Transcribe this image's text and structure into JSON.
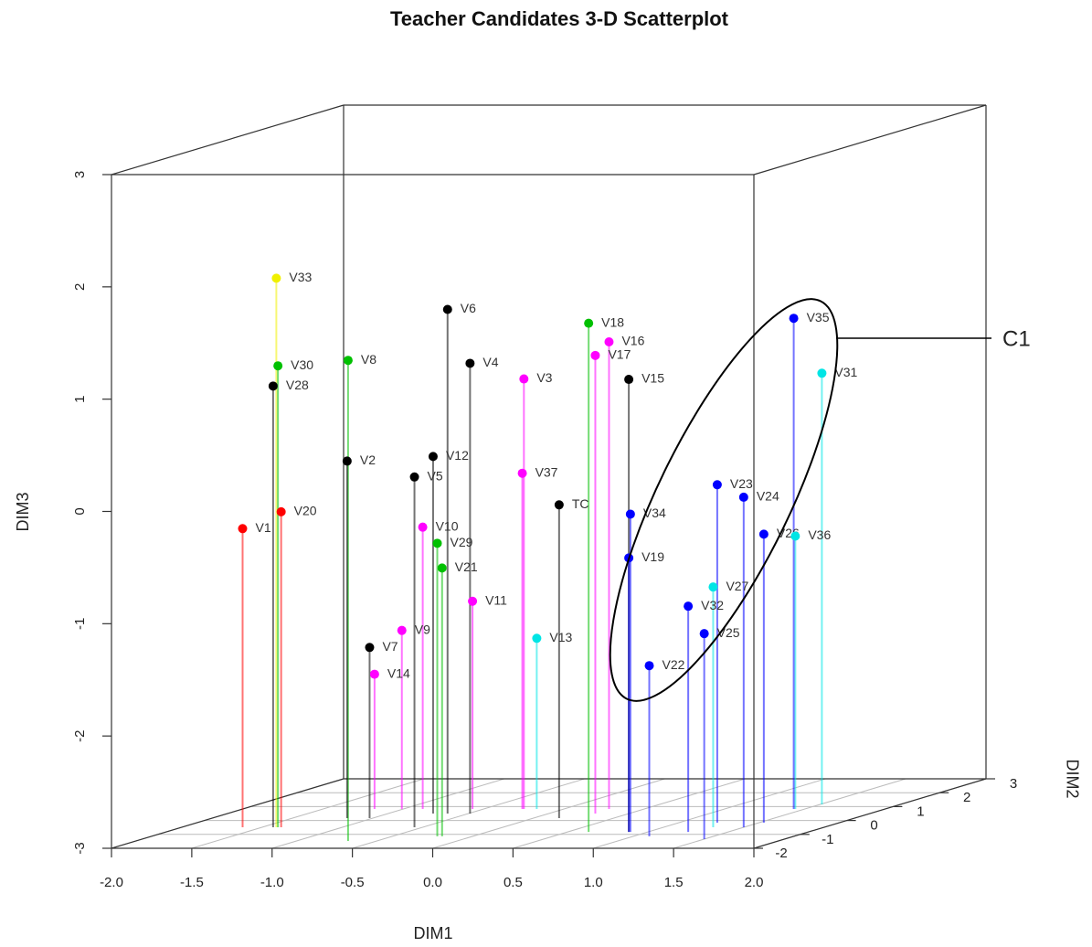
{
  "chart_data": {
    "type": "scatter3d",
    "title": "Teacher Candidates 3-D Scatterplot",
    "xlabel": "DIM1",
    "ylabel": "DIM2",
    "zlabel": "DIM3",
    "xlim": [
      -2,
      2
    ],
    "xticks": [
      {
        "value": -2,
        "label": "-2.0"
      },
      {
        "value": -1.5,
        "label": "-1.5"
      },
      {
        "value": -1,
        "label": "-1.0"
      },
      {
        "value": -0.5,
        "label": "-0.5"
      },
      {
        "value": 0,
        "label": "0.0"
      },
      {
        "value": 0.5,
        "label": "0.5"
      },
      {
        "value": 1,
        "label": "1.0"
      },
      {
        "value": 1.5,
        "label": "1.5"
      },
      {
        "value": 2,
        "label": "2.0"
      }
    ],
    "ylim": [
      -2,
      3
    ],
    "yticks": [
      -2,
      -1,
      0,
      1,
      2,
      3
    ],
    "zlim": [
      -3,
      3
    ],
    "zticks": [
      -3,
      -2,
      -1,
      0,
      1,
      2,
      3
    ],
    "grid": true,
    "labels": [
      "V33",
      "V30",
      "V28",
      "V20",
      "V1",
      "V8",
      "V2",
      "V6",
      "V4",
      "V12",
      "V5",
      "V10",
      "V29",
      "V21",
      "V11",
      "V9",
      "V7",
      "V14",
      "V3",
      "V37",
      "V13",
      "TC",
      "V18",
      "V17",
      "V16",
      "V15",
      "V34",
      "V19",
      "V22",
      "V32",
      "V25",
      "V27",
      "V23",
      "V24",
      "V26",
      "V36",
      "V35",
      "V31"
    ],
    "colors": [
      "#f0f000",
      "#00c000",
      "#000000",
      "#ff0000",
      "#ff0000",
      "#00c000",
      "#000000",
      "#000000",
      "#000000",
      "#000000",
      "#000000",
      "#ff00ff",
      "#00c000",
      "#00c000",
      "#ff00ff",
      "#ff00ff",
      "#000000",
      "#ff00ff",
      "#ff00ff",
      "#ff00ff",
      "#00e5e5",
      "#000000",
      "#00c000",
      "#ff00ff",
      "#ff00ff",
      "#000000",
      "#0000ff",
      "#0000ff",
      "#0000ff",
      "#0000ff",
      "#0000ff",
      "#00e5e5",
      "#0000ff",
      "#0000ff",
      "#0000ff",
      "#00e5e5",
      "#0000ff",
      "#00e5e5"
    ],
    "x": [
      -1.41,
      -1.4,
      -1.43,
      -1.38,
      -1.62,
      -0.68,
      -1.16,
      -0.63,
      -0.49,
      -0.72,
      -0.55,
      -0.88,
      -0.22,
      -0.19,
      -0.57,
      -1.01,
      -1.02,
      -1.18,
      -0.25,
      -0.26,
      -0.17,
      0.16,
      0.63,
      0.29,
      0.28,
      0.88,
      0.89,
      0.88,
      1.1,
      1.25,
      1.5,
      1.31,
      1.24,
      1.5,
      1.53,
      1.44,
      1.43,
      1.51
    ],
    "y": [
      -0.49,
      -0.49,
      -0.49,
      -0.49,
      -0.49,
      -1.47,
      0.17,
      0.5,
      0.5,
      0.5,
      -0.49,
      0.83,
      -1.14,
      -1.14,
      0.83,
      0.83,
      0.17,
      0.83,
      0.83,
      0.83,
      0.83,
      0.17,
      -0.82,
      0.5,
      0.83,
      -0.82,
      -0.82,
      -0.82,
      -1.14,
      -0.82,
      -1.34,
      -0.49,
      -0.16,
      -0.49,
      -0.16,
      0.83,
      0.83,
      1.16
    ],
    "z": [
      1.89,
      1.11,
      0.93,
      -0.19,
      -0.34,
      1.28,
      0.18,
      1.49,
      1.01,
      0.18,
      0.12,
      -0.49,
      -0.39,
      -0.61,
      -1.15,
      -1.41,
      -1.48,
      -1.8,
      0.83,
      -0.01,
      -1.48,
      -0.21,
      1.53,
      1.08,
      1.16,
      1.03,
      -0.17,
      -0.56,
      -1.48,
      -0.99,
      -1.17,
      -0.86,
      0.01,
      -0.06,
      -0.43,
      -0.57,
      1.37,
      0.84
    ],
    "annotation": "C1"
  }
}
